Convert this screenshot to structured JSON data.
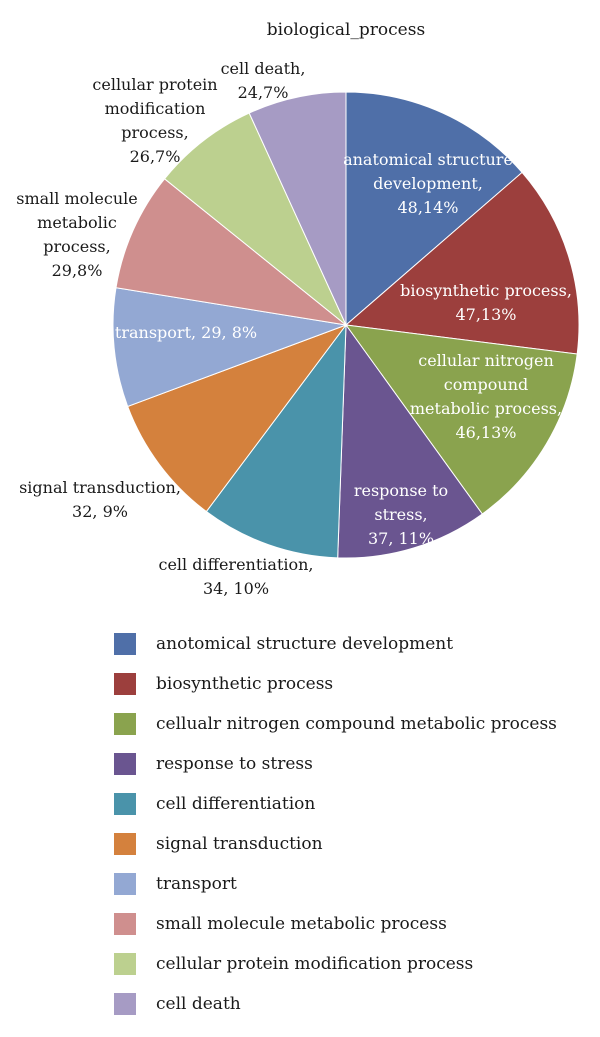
{
  "chart_data": {
    "type": "pie",
    "title": "biological_process",
    "slices": [
      {
        "name": "anotomical structure development",
        "value": 48,
        "percent": 14,
        "color": "#4f6fa8",
        "label_lines": [
          "anatomical structure",
          "development,",
          "48,14%"
        ],
        "label_color": "#ffffff"
      },
      {
        "name": "biosynthetic process",
        "value": 47,
        "percent": 13,
        "color": "#9c3f3d",
        "label_lines": [
          "biosynthetic process,",
          "47,13%"
        ],
        "label_color": "#ffffff"
      },
      {
        "name": "cellualr nitrogen compound metabolic process",
        "value": 46,
        "percent": 13,
        "color": "#8aa34e",
        "label_lines": [
          "cellular nitrogen",
          "compound",
          "metabolic process,",
          "46,13%"
        ],
        "label_color": "#ffffff"
      },
      {
        "name": "response to stress",
        "value": 37,
        "percent": 11,
        "color": "#6a5590",
        "label_lines": [
          "response to",
          "stress,",
          "37, 11%"
        ],
        "label_color": "#ffffff"
      },
      {
        "name": "cell differentiation",
        "value": 34,
        "percent": 10,
        "color": "#4a93aa",
        "label_lines": [
          "cell differentiation,",
          "34, 10%"
        ],
        "label_color": "#1a1a1a"
      },
      {
        "name": "signal transduction",
        "value": 32,
        "percent": 9,
        "color": "#d4813d",
        "label_lines": [
          "signal transduction,",
          "32, 9%"
        ],
        "label_color": "#1a1a1a"
      },
      {
        "name": "transport",
        "value": 29,
        "percent": 8,
        "color": "#93a8d3",
        "label_lines": [
          "transport, 29, 8%"
        ],
        "label_color": "#ffffff"
      },
      {
        "name": "small molecule metabolic process",
        "value": 29,
        "percent": 8,
        "color": "#cf8f8e",
        "label_lines": [
          "small molecule",
          "metabolic",
          "process,",
          "29,8%"
        ],
        "label_color": "#1a1a1a"
      },
      {
        "name": "cellular protein modification process",
        "value": 26,
        "percent": 7,
        "color": "#bcd08f",
        "label_lines": [
          "cellular protein",
          "modification",
          "process,",
          "26,7%"
        ],
        "label_color": "#1a1a1a"
      },
      {
        "name": "cell death",
        "value": 24,
        "percent": 7,
        "color": "#a69bc4",
        "label_lines": [
          "cell death,",
          "24,7%"
        ],
        "label_color": "#1a1a1a"
      }
    ],
    "legend_position": "bottom"
  }
}
